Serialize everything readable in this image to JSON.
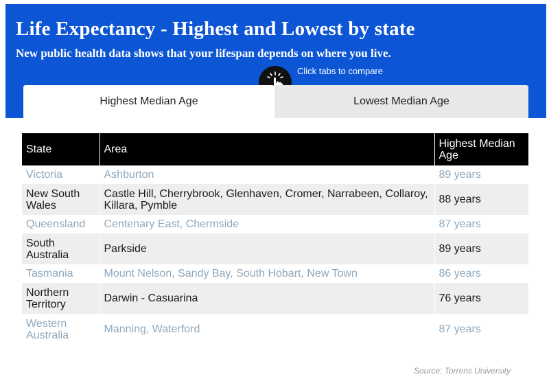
{
  "header": {
    "title": "Life Expectancy - Highest and Lowest by state",
    "subtitle": "New public health data shows that your lifespan depends on where you live.",
    "hint": "Click tabs to compare",
    "hint_icon": "tap-hand-icon",
    "accent_color": "#0c56d6"
  },
  "tabs": [
    {
      "label": "Highest Median Age",
      "active": true
    },
    {
      "label": "Lowest Median Age",
      "active": false
    }
  ],
  "table": {
    "columns": [
      "State",
      "Area",
      "Highest Median Age"
    ],
    "rows": [
      {
        "state": "Victoria",
        "area": "Ashburton",
        "age": "89 years"
      },
      {
        "state": "New South Wales",
        "area": "Castle Hill, Cherrybrook, Glenhaven, Cromer, Narrabeen, Collaroy, Killara, Pymble",
        "age": "88 years"
      },
      {
        "state": "Queensland",
        "area": "Centenary East, Chermside",
        "age": "87 years"
      },
      {
        "state": "South Australia",
        "area": "Parkside",
        "age": "89 years"
      },
      {
        "state": "Tasmania",
        "area": "Mount Nelson, Sandy Bay, South Hobart, New Town",
        "age": "86 years"
      },
      {
        "state": "Northern Territory",
        "area": "Darwin - Casuarina",
        "age": "76 years"
      },
      {
        "state": "Western Australia",
        "area": "Manning, Waterford",
        "age": "87 years"
      }
    ]
  },
  "source": "Source: Torrens University"
}
